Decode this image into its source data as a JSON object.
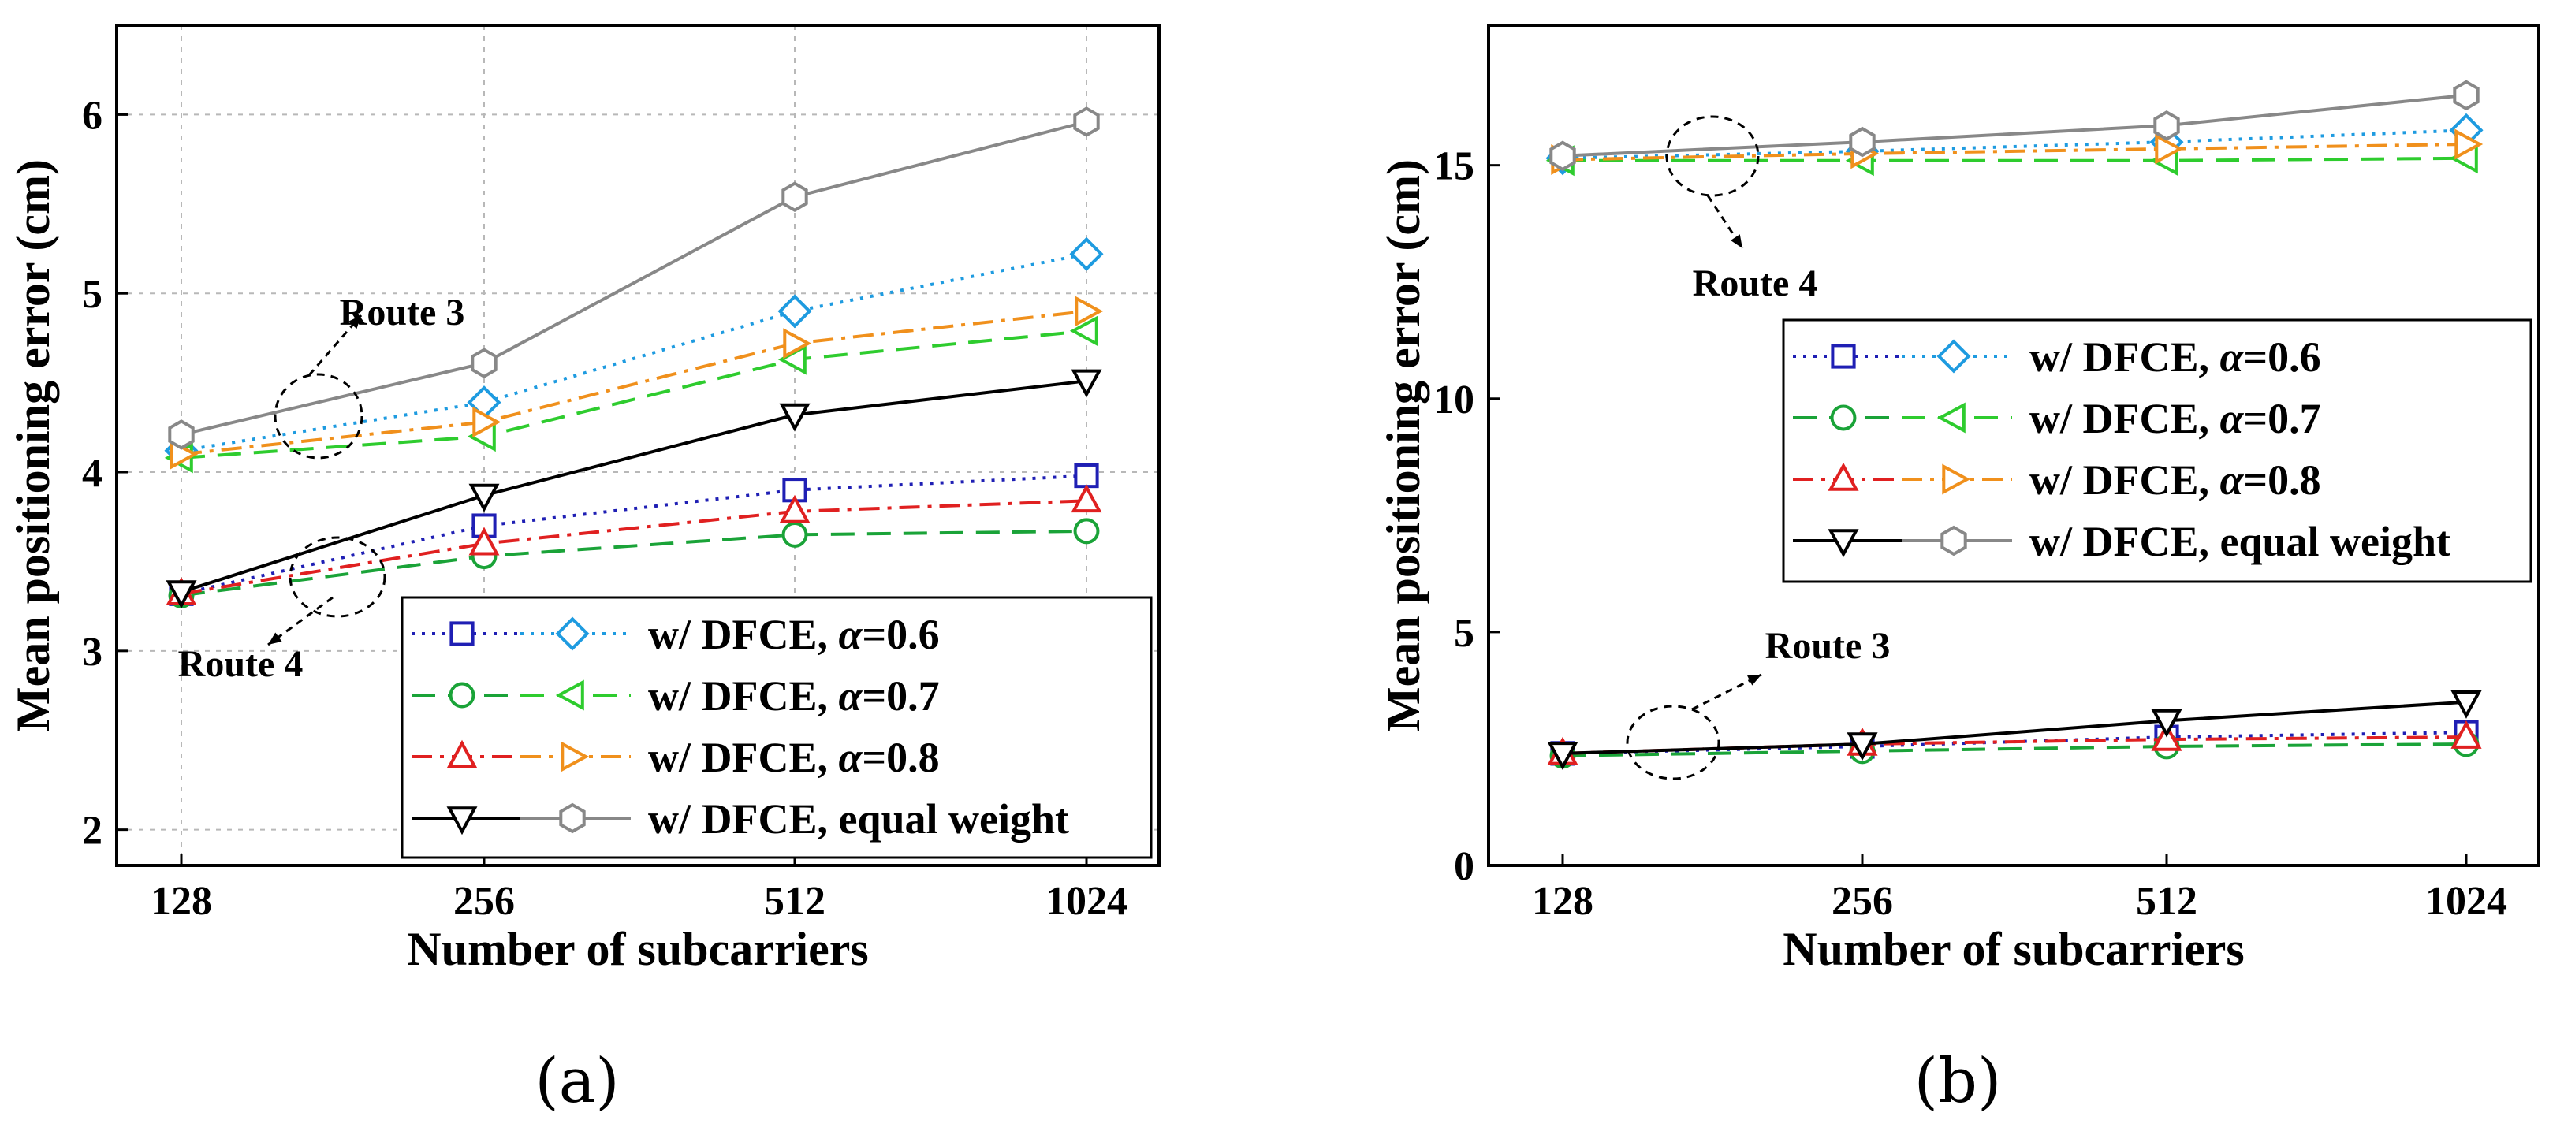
{
  "figure_labels": [
    "(a)",
    "(b)"
  ],
  "colors": {
    "a06_square": "#1f1fb4",
    "a06_diamond": "#1e9be0",
    "a07_circle": "#1aa338",
    "a07_triangle": "#2ecc2e",
    "a08_up": "#e02020",
    "a08_right": "#f0901c",
    "eq_down": "#000000",
    "eq_hex": "#888888"
  },
  "chart_data": [
    {
      "type": "line",
      "xlabel": "Number of subcarriers",
      "ylabel": "Mean positioning error (cm)",
      "categories": [
        "128",
        "256",
        "512",
        "1024"
      ],
      "ylim": [
        1.8,
        6.5
      ],
      "yticks": [
        2,
        3,
        4,
        5,
        6
      ],
      "grid": true,
      "legend_position": "bottom-right",
      "legend": [
        "w/ DFCE, α=0.6",
        "w/ DFCE, α=0.7",
        "w/ DFCE, α=0.8",
        "w/ DFCE, equal weight"
      ],
      "annotations": [
        "Route 4",
        "Route 3"
      ],
      "series": [
        {
          "route": "Route 3",
          "legend_index": 0,
          "marker": "square",
          "dash": "dot",
          "color_key": "a06_square",
          "values": [
            3.32,
            3.7,
            3.9,
            3.98
          ]
        },
        {
          "route": "Route 3",
          "legend_index": 1,
          "marker": "circle",
          "dash": "dash",
          "color_key": "a07_circle",
          "values": [
            3.31,
            3.53,
            3.65,
            3.67
          ]
        },
        {
          "route": "Route 3",
          "legend_index": 2,
          "marker": "triangle-up",
          "dash": "dashdot",
          "color_key": "a08_up",
          "values": [
            3.32,
            3.6,
            3.78,
            3.84
          ]
        },
        {
          "route": "Route 3",
          "legend_index": 3,
          "marker": "triangle-down",
          "dash": "solid",
          "color_key": "eq_down",
          "values": [
            3.33,
            3.87,
            4.32,
            4.51
          ]
        },
        {
          "route": "Route 4",
          "legend_index": 0,
          "marker": "diamond",
          "dash": "dot",
          "color_key": "a06_diamond",
          "values": [
            4.12,
            4.39,
            4.9,
            5.22
          ]
        },
        {
          "route": "Route 4",
          "legend_index": 1,
          "marker": "triangle-left",
          "dash": "dash",
          "color_key": "a07_triangle",
          "values": [
            4.08,
            4.2,
            4.63,
            4.79
          ]
        },
        {
          "route": "Route 4",
          "legend_index": 2,
          "marker": "triangle-right",
          "dash": "dashdot",
          "color_key": "a08_right",
          "values": [
            4.1,
            4.28,
            4.72,
            4.9
          ]
        },
        {
          "route": "Route 4",
          "legend_index": 3,
          "marker": "hexagon",
          "dash": "solid",
          "color_key": "eq_hex",
          "values": [
            4.21,
            4.61,
            5.54,
            5.96
          ]
        }
      ]
    },
    {
      "type": "line",
      "xlabel": "Number of subcarriers",
      "ylabel": "Mean positioning error (cm)",
      "categories": [
        "128",
        "256",
        "512",
        "1024"
      ],
      "ylim": [
        0,
        18
      ],
      "yticks": [
        0,
        5,
        10,
        15
      ],
      "grid": false,
      "legend_position": "upper-right",
      "legend": [
        "w/ DFCE, α=0.6",
        "w/ DFCE, α=0.7",
        "w/ DFCE, α=0.8",
        "w/ DFCE, equal weight"
      ],
      "annotations": [
        "Route 4",
        "Route 3"
      ],
      "series": [
        {
          "route": "Route 3",
          "legend_index": 0,
          "marker": "square",
          "dash": "dot",
          "color_key": "a06_square",
          "values": [
            2.4,
            2.55,
            2.75,
            2.85
          ]
        },
        {
          "route": "Route 3",
          "legend_index": 1,
          "marker": "circle",
          "dash": "dash",
          "color_key": "a07_circle",
          "values": [
            2.35,
            2.45,
            2.55,
            2.6
          ]
        },
        {
          "route": "Route 3",
          "legend_index": 2,
          "marker": "triangle-up",
          "dash": "dashdot",
          "color_key": "a08_up",
          "values": [
            2.4,
            2.6,
            2.7,
            2.75
          ]
        },
        {
          "route": "Route 3",
          "legend_index": 3,
          "marker": "triangle-down",
          "dash": "solid",
          "color_key": "eq_down",
          "values": [
            2.4,
            2.6,
            3.1,
            3.5
          ]
        },
        {
          "route": "Route 4",
          "legend_index": 0,
          "marker": "diamond",
          "dash": "dot",
          "color_key": "a06_diamond",
          "values": [
            15.15,
            15.3,
            15.5,
            15.75
          ]
        },
        {
          "route": "Route 4",
          "legend_index": 1,
          "marker": "triangle-left",
          "dash": "dash",
          "color_key": "a07_triangle",
          "values": [
            15.1,
            15.1,
            15.1,
            15.15
          ]
        },
        {
          "route": "Route 4",
          "legend_index": 2,
          "marker": "triangle-right",
          "dash": "dashdot",
          "color_key": "a08_right",
          "values": [
            15.12,
            15.25,
            15.35,
            15.45
          ]
        },
        {
          "route": "Route 4",
          "legend_index": 3,
          "marker": "hexagon",
          "dash": "solid",
          "color_key": "eq_hex",
          "values": [
            15.2,
            15.5,
            15.85,
            16.5
          ]
        }
      ]
    }
  ]
}
